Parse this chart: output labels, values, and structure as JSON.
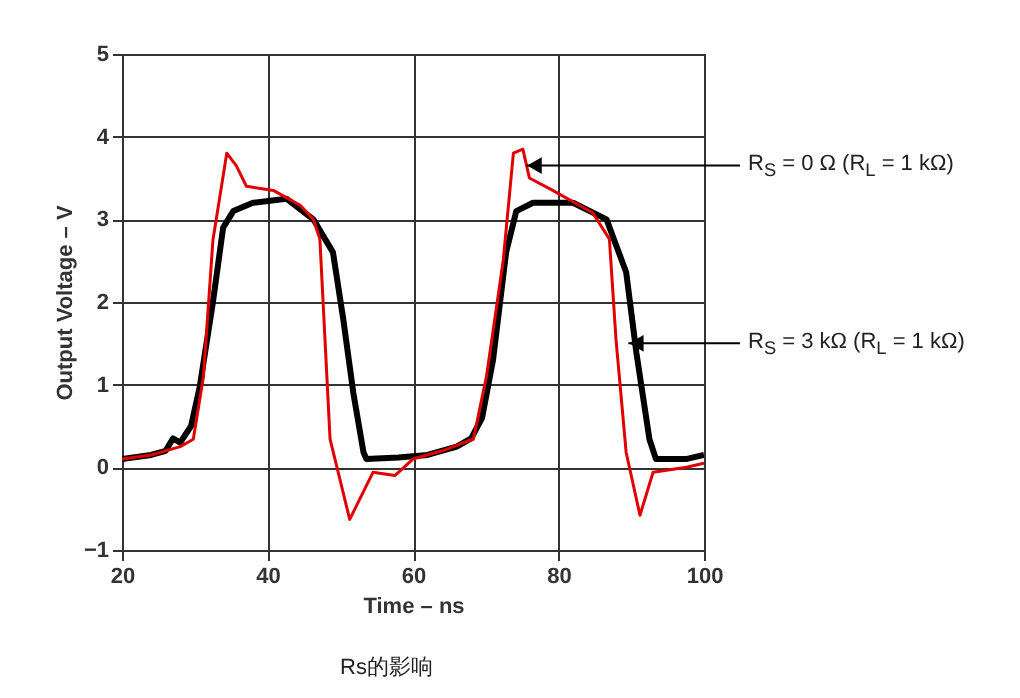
{
  "chart_data": {
    "type": "line",
    "xlabel": "Time – ns",
    "ylabel": "Output Voltage – V",
    "xlim": [
      20,
      100
    ],
    "xticks": [
      20,
      40,
      60,
      80,
      100
    ],
    "ylim": [
      -1,
      5
    ],
    "yticks": [
      -1,
      0,
      1,
      2,
      3,
      4,
      5
    ],
    "grid": true,
    "legend": false,
    "series": [
      {
        "color": "#000000",
        "x": [
          20,
          24,
          26,
          27,
          28,
          29.5,
          30.7,
          32.5,
          33.9,
          35.3,
          38,
          42.6,
          46.3,
          49,
          50.4,
          51.8,
          53.2,
          53.6,
          58,
          62,
          66,
          68,
          69.5,
          71,
          72.8,
          74.2,
          76.5,
          82,
          86.6,
          89.3,
          90.7,
          92.5,
          93.4,
          97.5,
          100
        ],
        "values": [
          0.1,
          0.15,
          0.2,
          0.35,
          0.3,
          0.5,
          0.98,
          2.0,
          2.9,
          3.1,
          3.2,
          3.25,
          3.0,
          2.6,
          1.8,
          0.9,
          0.18,
          0.1,
          0.12,
          0.15,
          0.25,
          0.35,
          0.6,
          1.3,
          2.6,
          3.1,
          3.2,
          3.2,
          3.0,
          2.36,
          1.39,
          0.34,
          0.1,
          0.1,
          0.15
        ]
      },
      {
        "color": "#e00000",
        "x": [
          20,
          24,
          28,
          29.8,
          31.2,
          32.5,
          34.4,
          35.7,
          37.1,
          40.8,
          44.5,
          46.3,
          47.2,
          48.6,
          51.3,
          54.5,
          57.5,
          60,
          64,
          67,
          68.3,
          70.1,
          72.4,
          73.8,
          75.1,
          76,
          79.2,
          84.7,
          87,
          87.9,
          89.3,
          91.2,
          93,
          97.6,
          100
        ],
        "values": [
          0.1,
          0.15,
          0.25,
          0.34,
          1.1,
          2.75,
          3.8,
          3.65,
          3.4,
          3.35,
          3.17,
          3.0,
          2.76,
          0.34,
          -0.63,
          -0.06,
          -0.1,
          0.1,
          0.2,
          0.3,
          0.34,
          1.1,
          2.5,
          3.8,
          3.85,
          3.5,
          3.35,
          3.08,
          2.76,
          1.55,
          0.18,
          -0.58,
          -0.06,
          0.0,
          0.05
        ]
      }
    ],
    "annotations": [
      {
        "text": "R$_{S}$ = 0 Ω (R$_{L}$ = 1 kΩ)",
        "x": 75.6,
        "y": 3.65
      },
      {
        "text": "R$_{S}$ = 3 kΩ (R$_{L}$ = 1 kΩ)",
        "x": 89.6,
        "y": 1.5
      },
      "Rs的影响"
    ]
  }
}
